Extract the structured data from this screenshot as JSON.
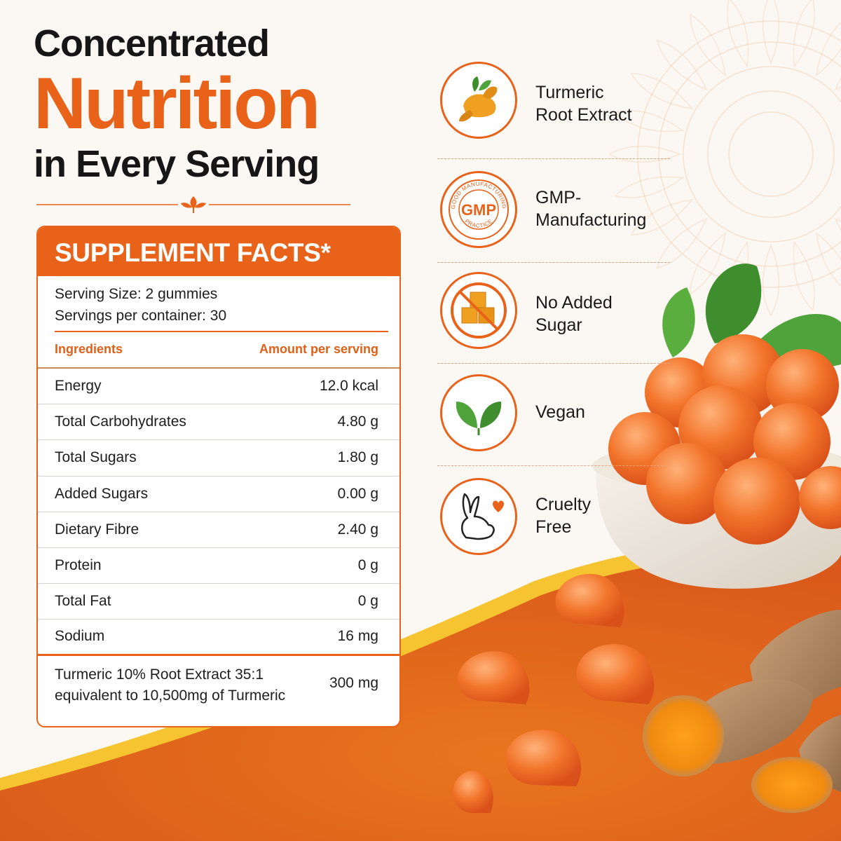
{
  "headline": {
    "line1": "Concentrated",
    "line2": "Nutrition",
    "line3": "in Every Serving"
  },
  "colors": {
    "accent": "#e8621a",
    "accent_light": "#f4a04a",
    "text": "#1a1a1a"
  },
  "facts": {
    "title": "SUPPLEMENT FACTS*",
    "serving_size": "Serving Size: 2 gummies",
    "servings_per_container": "Servings per container: 30",
    "col_ingredients": "Ingredients",
    "col_amount": "Amount per serving",
    "rows": [
      {
        "name": "Energy",
        "amount": "12.0 kcal"
      },
      {
        "name": "Total Carbohydrates",
        "amount": "4.80 g"
      },
      {
        "name": "Total Sugars",
        "amount": "1.80 g"
      },
      {
        "name": "Added Sugars",
        "amount": "0.00 g"
      },
      {
        "name": "Dietary Fibre",
        "amount": "2.40 g"
      },
      {
        "name": "Protein",
        "amount": "0 g"
      },
      {
        "name": "Total Fat",
        "amount": "0 g"
      },
      {
        "name": "Sodium",
        "amount": "16 mg"
      }
    ],
    "extract_line1": "Turmeric 10% Root Extract 35:1",
    "extract_line2": "equivalent to 10,500mg of Turmeric",
    "extract_amount": "300 mg"
  },
  "features": [
    {
      "line1": "Turmeric",
      "line2": "Root Extract",
      "icon": "turmeric-root-icon"
    },
    {
      "line1": "GMP-",
      "line2": "Manufacturing",
      "icon": "gmp-seal-icon"
    },
    {
      "line1": "No Added",
      "line2": "Sugar",
      "icon": "no-sugar-icon"
    },
    {
      "line1": "Vegan",
      "line2": "",
      "icon": "vegan-leaf-icon"
    },
    {
      "line1": "Cruelty",
      "line2": "Free",
      "icon": "cruelty-free-rabbit-icon"
    }
  ],
  "gmp_seal": {
    "center": "GMP",
    "arc_top": "GOOD MANUFACTURING",
    "arc_bottom": "PRACTICE"
  }
}
